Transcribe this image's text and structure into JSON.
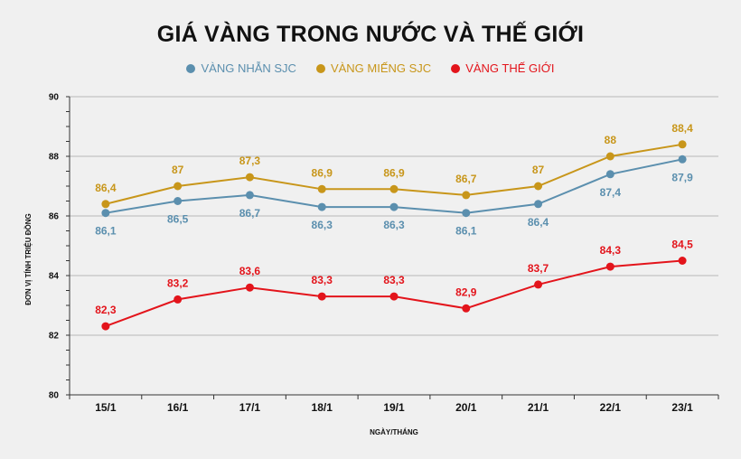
{
  "chart_data": {
    "type": "line",
    "title": "GIÁ VÀNG TRONG NƯỚC VÀ THẾ GIỚI",
    "xlabel": "NGÀY/THÁNG",
    "ylabel": "ĐƠN VỊ TÍNH TRIỆU ĐỒNG",
    "categories": [
      "15/1",
      "16/1",
      "17/1",
      "18/1",
      "19/1",
      "20/1",
      "21/1",
      "22/1",
      "23/1"
    ],
    "ylim": [
      80,
      90
    ],
    "yticks": [
      80,
      82,
      84,
      86,
      88,
      90
    ],
    "grid": true,
    "legend_position": "top-center",
    "series": [
      {
        "name": "VÀNG NHẪN SJC",
        "color": "#5b8fae",
        "values": [
          86.1,
          86.5,
          86.7,
          86.3,
          86.3,
          86.1,
          86.4,
          87.4,
          87.9
        ],
        "labels": [
          "86,1",
          "86,5",
          "86,7",
          "86,3",
          "86,3",
          "86,1",
          "86,4",
          "87,4",
          "87,9"
        ],
        "label_position": "below"
      },
      {
        "name": "VÀNG MIẾNG SJC",
        "color": "#c8961a",
        "values": [
          86.4,
          87,
          87.3,
          86.9,
          86.9,
          86.7,
          87,
          88,
          88.4
        ],
        "labels": [
          "86,4",
          "87",
          "87,3",
          "86,9",
          "86,9",
          "86,7",
          "87",
          "88",
          "88,4"
        ],
        "label_position": "above"
      },
      {
        "name": "VÀNG THẾ GIỚI",
        "color": "#e3141b",
        "values": [
          82.3,
          83.2,
          83.6,
          83.3,
          83.3,
          82.9,
          83.7,
          84.3,
          84.5
        ],
        "labels": [
          "82,3",
          "83,2",
          "83,6",
          "83,3",
          "83,3",
          "82,9",
          "83,7",
          "84,3",
          "84,5"
        ],
        "label_position": "above"
      }
    ]
  }
}
